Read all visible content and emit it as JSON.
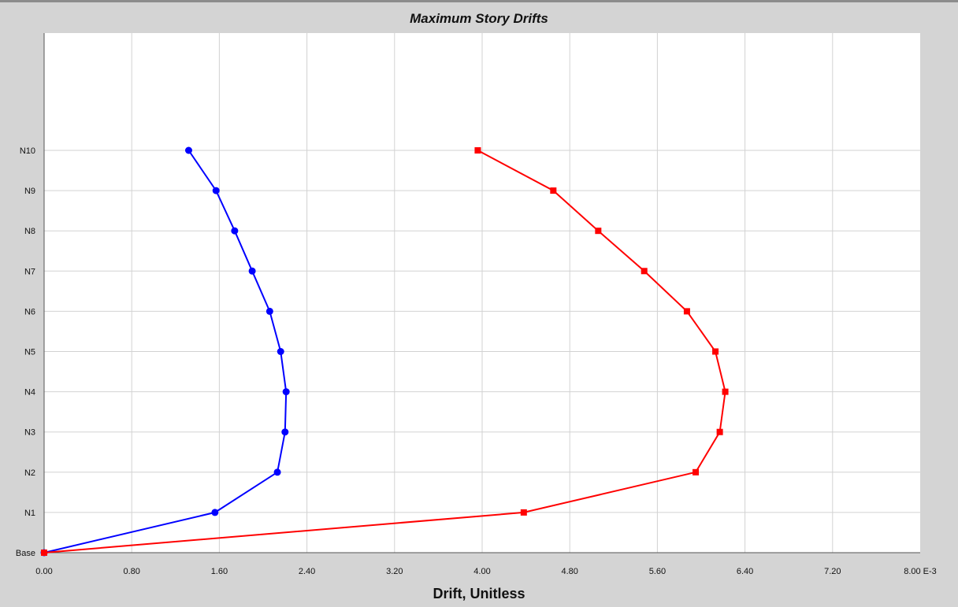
{
  "chart_data": {
    "type": "line",
    "title": "Maximum Story Drifts",
    "xlabel": "Drift, Unitless",
    "ylabel": "",
    "x_unit_suffix": "E-3",
    "xlim": [
      0,
      8
    ],
    "x_ticks": [
      "0.00",
      "0.80",
      "1.60",
      "2.40",
      "3.20",
      "4.00",
      "4.80",
      "5.60",
      "6.40",
      "7.20",
      "8.00"
    ],
    "categories": [
      "Base",
      "N1",
      "N2",
      "N3",
      "N4",
      "N5",
      "N6",
      "N7",
      "N8",
      "N9",
      "N10"
    ],
    "grid": true,
    "series": [
      {
        "color": "#0000ff",
        "marker": "circle",
        "values": [
          0.0,
          1.56,
          2.13,
          2.2,
          2.21,
          2.16,
          2.06,
          1.9,
          1.74,
          1.57,
          1.32
        ]
      },
      {
        "color": "#ff0000",
        "marker": "square",
        "values": [
          0.0,
          4.38,
          5.95,
          6.17,
          6.22,
          6.13,
          5.87,
          5.48,
          5.06,
          4.65,
          3.96
        ]
      }
    ]
  }
}
